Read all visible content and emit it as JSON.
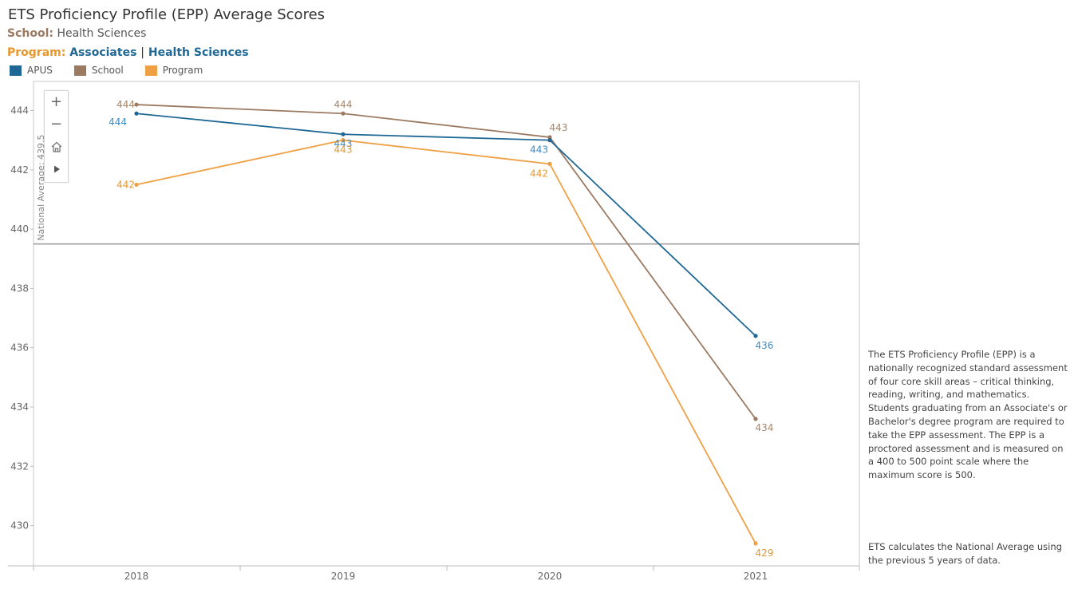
{
  "header": {
    "title": "ETS Proficiency Profile (EPP) Average Scores",
    "school_key": "School:",
    "school_value": "Health Sciences",
    "program_key": "Program:",
    "program_value_1": "Associates",
    "program_separator": "|",
    "program_value_2": "Health Sciences"
  },
  "legend": [
    {
      "label": "APUS",
      "color": "#1f6896"
    },
    {
      "label": "School",
      "color": "#9c7a62"
    },
    {
      "label": "Program",
      "color": "#f0a044"
    }
  ],
  "zoom_controls": {
    "zoom_in": "+",
    "zoom_out": "−",
    "home_icon": "home-icon",
    "play_icon": "play-icon"
  },
  "chart_data": {
    "type": "line",
    "title": "ETS Proficiency Profile (EPP) Average Scores",
    "xlabel": "",
    "ylabel": "",
    "x": [
      "2018",
      "2019",
      "2020",
      "2021"
    ],
    "ylim": [
      428.6,
      445.2
    ],
    "yticks": [
      430,
      432,
      434,
      436,
      438,
      440,
      442,
      444
    ],
    "grid": false,
    "legend_position": "top-left",
    "series": [
      {
        "name": "APUS",
        "color": "#1f6896",
        "label_color": "#3d8dc4",
        "values": [
          443.9,
          443.2,
          443.0,
          436.4
        ],
        "labels": [
          "444",
          "443",
          "443",
          "436"
        ]
      },
      {
        "name": "School",
        "color": "#9c7a62",
        "label_color": "#a98466",
        "values": [
          444.2,
          443.9,
          443.1,
          433.6
        ],
        "labels": [
          "444",
          "444",
          "443",
          "434"
        ]
      },
      {
        "name": "Program",
        "color": "#f0a044",
        "label_color": "#e8962e",
        "values": [
          441.5,
          443.0,
          442.2,
          429.4
        ],
        "labels": [
          "442",
          "443",
          "442",
          "429"
        ]
      }
    ],
    "reference_line": {
      "value": 439.5,
      "label": "National Average: 439.5",
      "color": "#a0a0a0"
    }
  },
  "description": {
    "paragraph_1": "The ETS Proficiency Profile (EPP) is a nationally recognized standard assessment of four core skill areas – critical thinking, reading, writing, and mathematics.  Students graduating from an Associate's or Bachelor's degree program are required to take the EPP assessment.  The EPP is a proctored assessment and is measured on a 400 to 500 point scale where the maximum score is 500.",
    "paragraph_2": "ETS calculates the National Average using the previous 5 years of data."
  }
}
